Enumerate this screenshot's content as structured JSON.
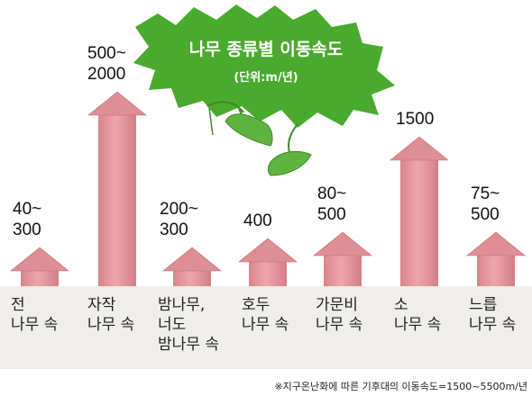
{
  "chart_data": {
    "type": "bar",
    "title": "나무 종류별 이동속도",
    "subtitle": "(단위:m/년)",
    "unit": "m/년",
    "categories": [
      [
        "전",
        "나무 속"
      ],
      [
        "자작",
        "나무 속"
      ],
      [
        "밤나무,",
        "너도",
        "밤나무 속"
      ],
      [
        "호두",
        "나무 속"
      ],
      [
        "가문비",
        "나무 속"
      ],
      [
        "소",
        "나무 속"
      ],
      [
        "느릅",
        "나무 속"
      ]
    ],
    "value_labels": [
      [
        "40~",
        "300"
      ],
      [
        "500~",
        "2000"
      ],
      [
        "200~",
        "300"
      ],
      [
        "400"
      ],
      [
        "80~",
        "500"
      ],
      [
        "1500"
      ],
      [
        "75~",
        "500"
      ]
    ],
    "values": [
      {
        "low": 40,
        "high": 300
      },
      {
        "low": 500,
        "high": 2000
      },
      {
        "low": 200,
        "high": 300
      },
      {
        "low": 400,
        "high": 400
      },
      {
        "low": 80,
        "high": 500
      },
      {
        "low": 1500,
        "high": 1500
      },
      {
        "low": 75,
        "high": 500
      }
    ],
    "footnote": "※지구온난화에 따른 기후대의 이동속도=1500~5500m/년",
    "colors": {
      "arrow_fill": "#e59a9f",
      "arrow_edge": "#c96a72",
      "leaf": "#4aaa2e",
      "leaf_dark": "#2f7f1a",
      "label_strip": "#efeeea"
    }
  }
}
